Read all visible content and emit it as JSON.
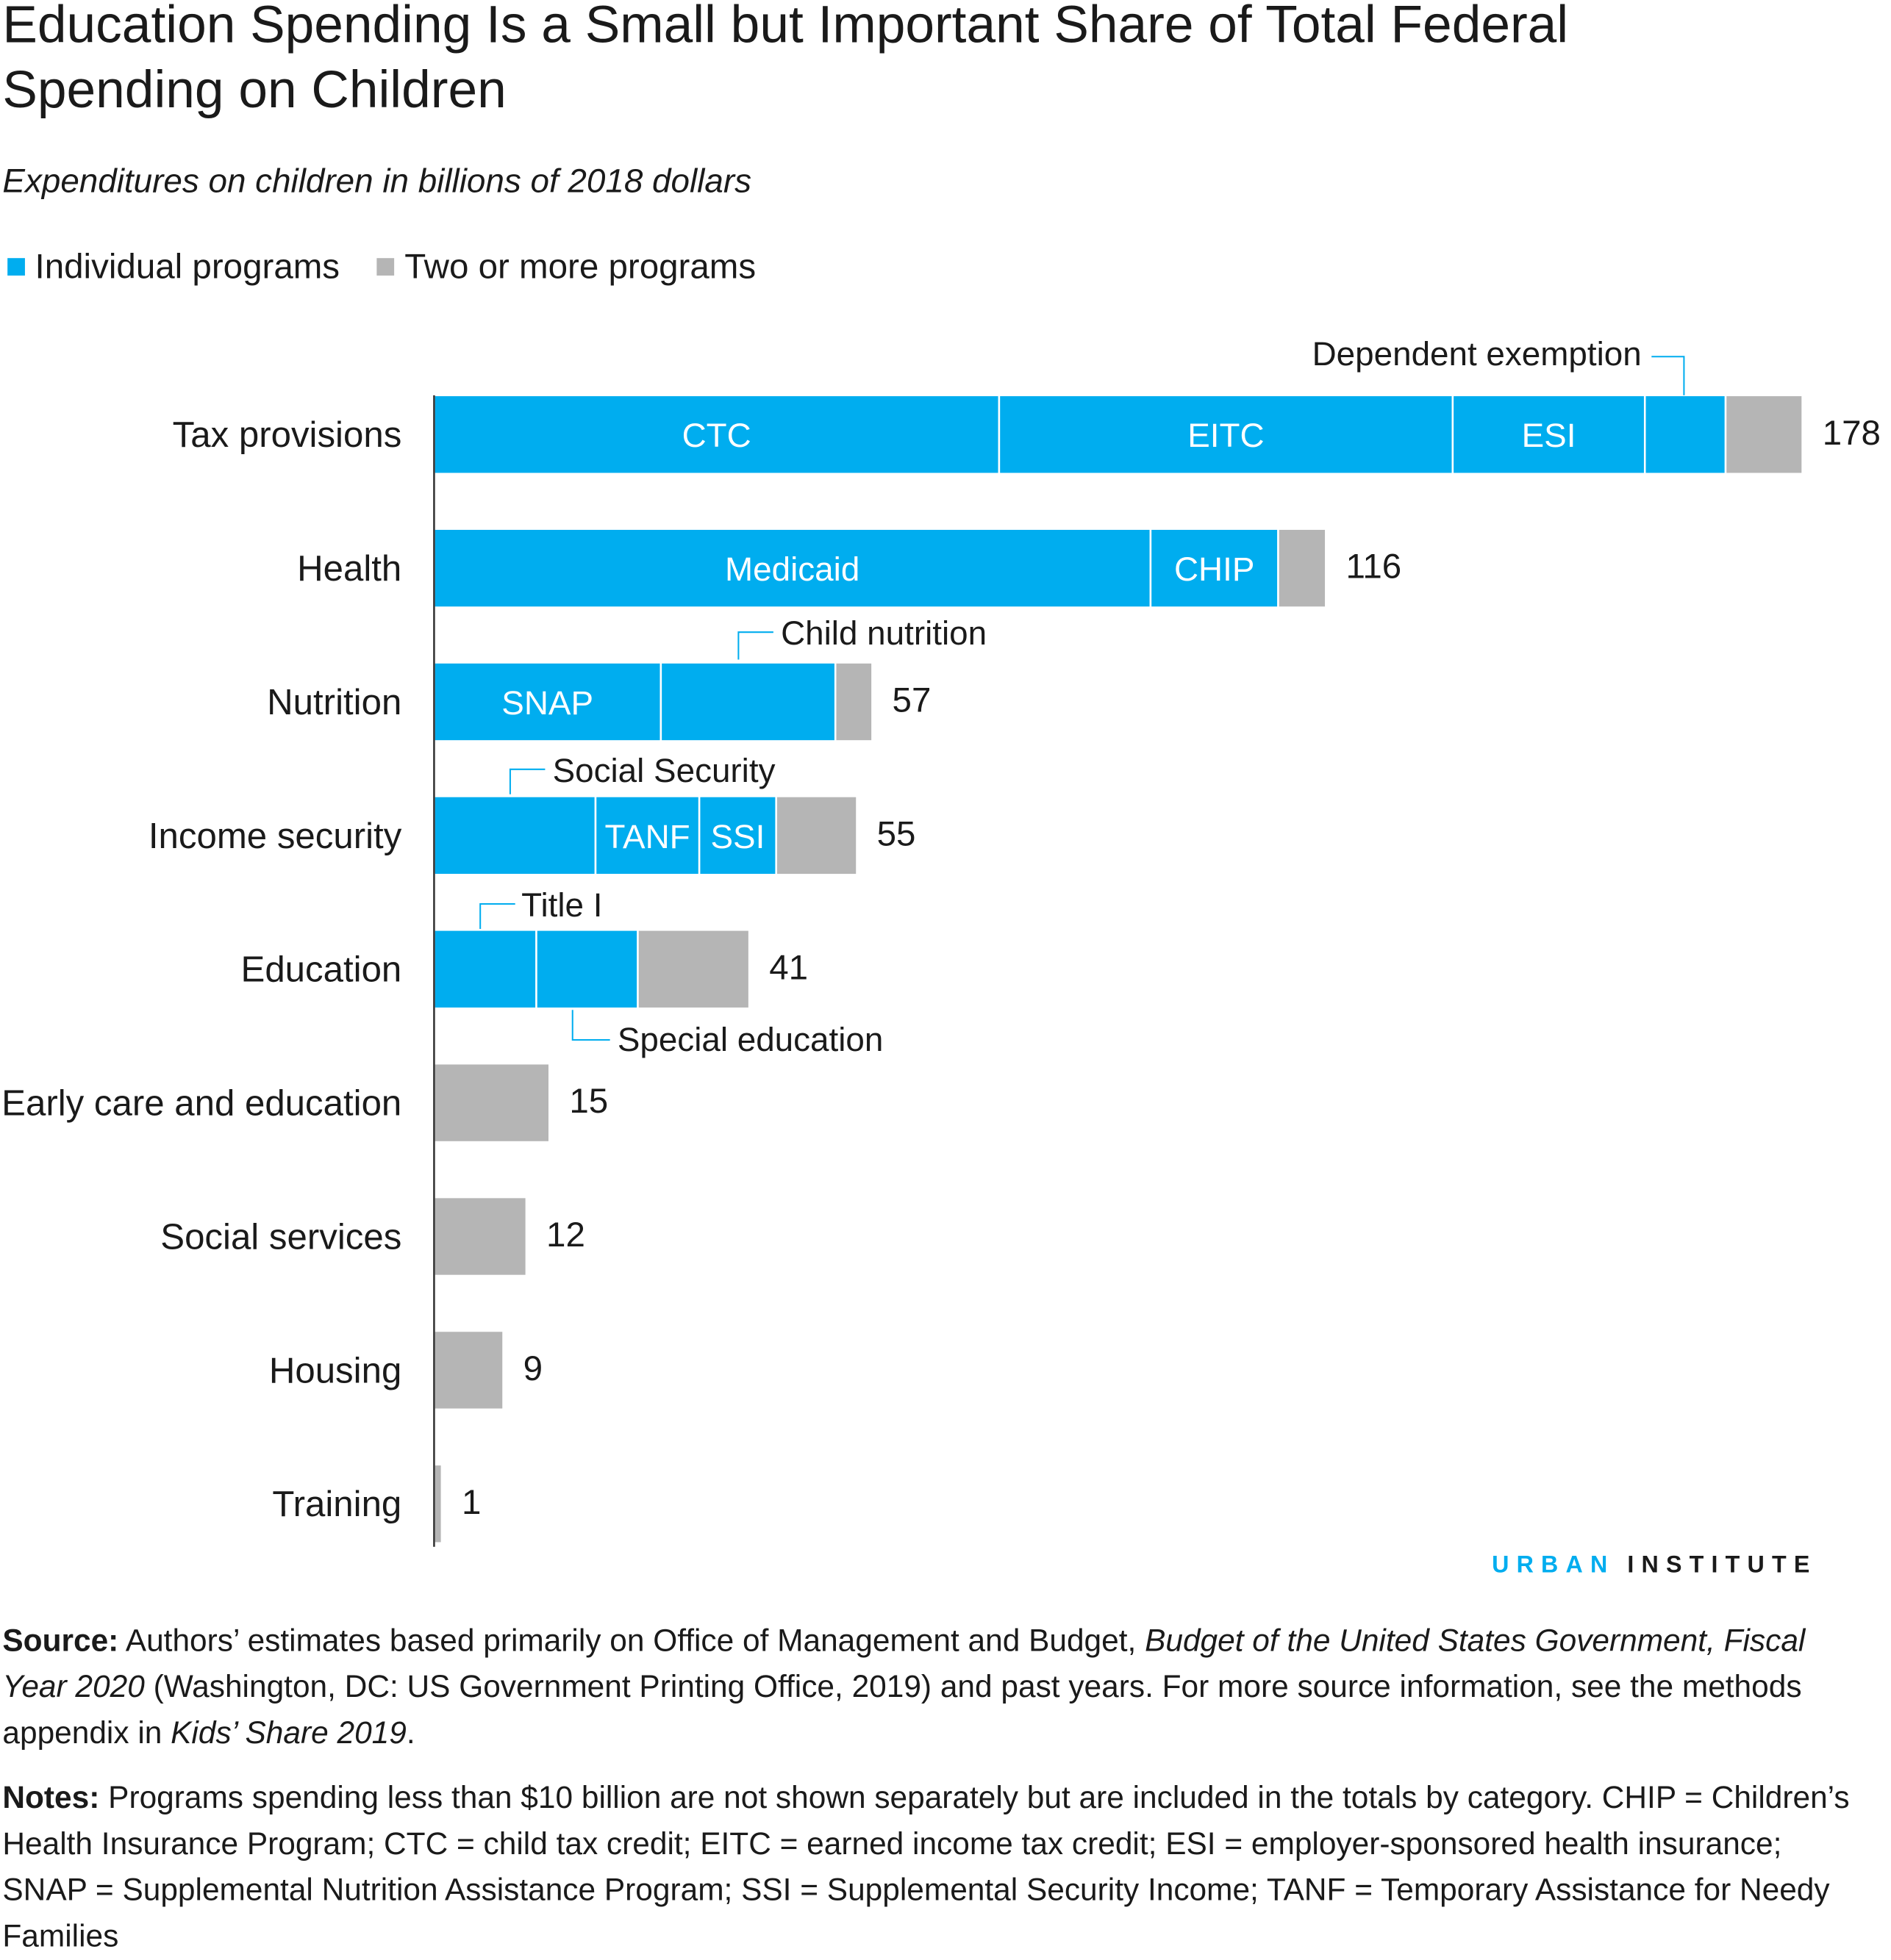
{
  "chart_data": {
    "type": "bar",
    "orientation": "horizontal",
    "stacked": true,
    "title": "Education Spending Is a Small but Important Share of Total Federal Spending on Children",
    "subtitle": "Expenditures on children in billions of 2018 dollars",
    "xlabel": "",
    "ylabel": "",
    "xlim": [
      0,
      178
    ],
    "grid": false,
    "legend_position": "top-left",
    "legend": [
      {
        "label": "Individual programs",
        "color": "#00adef"
      },
      {
        "label": "Two or more programs",
        "color": "#b5b5b5"
      }
    ],
    "rows": [
      {
        "category": "Tax provisions",
        "total": 178,
        "segments": [
          {
            "name": "CTC",
            "value": 73.5,
            "type": "individual"
          },
          {
            "name": "EITC",
            "value": 59,
            "type": "individual"
          },
          {
            "name": "ESI",
            "value": 25,
            "type": "individual"
          },
          {
            "name": "Dependent exemption",
            "value": 10.5,
            "type": "individual"
          },
          {
            "value": 10,
            "type": "two_or_more"
          }
        ]
      },
      {
        "category": "Health",
        "total": 116,
        "segments": [
          {
            "name": "Medicaid",
            "value": 93.2,
            "type": "individual"
          },
          {
            "name": "CHIP",
            "value": 16.6,
            "type": "individual"
          },
          {
            "value": 6.2,
            "type": "two_or_more"
          }
        ]
      },
      {
        "category": "Nutrition",
        "total": 57,
        "segments": [
          {
            "name": "SNAP",
            "value": 29.5,
            "type": "individual"
          },
          {
            "name": "Child nutrition",
            "value": 22.7,
            "type": "individual"
          },
          {
            "value": 4.8,
            "type": "two_or_more"
          }
        ]
      },
      {
        "category": "Income security",
        "total": 55,
        "segments": [
          {
            "name": "Social Security",
            "value": 21,
            "type": "individual"
          },
          {
            "name": "TANF",
            "value": 13.5,
            "type": "individual"
          },
          {
            "name": "SSI",
            "value": 10,
            "type": "individual"
          },
          {
            "value": 10.5,
            "type": "two_or_more"
          }
        ]
      },
      {
        "category": "Education",
        "total": 41,
        "segments": [
          {
            "name": "Title I",
            "value": 13.3,
            "type": "individual"
          },
          {
            "name": "Special education",
            "value": 13.2,
            "type": "individual"
          },
          {
            "value": 14.5,
            "type": "two_or_more"
          }
        ]
      },
      {
        "category": "Early care and education",
        "total": 15,
        "segments": [
          {
            "value": 15,
            "type": "two_or_more"
          }
        ]
      },
      {
        "category": "Social services",
        "total": 12,
        "segments": [
          {
            "value": 12,
            "type": "two_or_more"
          }
        ]
      },
      {
        "category": "Housing",
        "total": 9,
        "segments": [
          {
            "value": 9,
            "type": "two_or_more"
          }
        ]
      },
      {
        "category": "Training",
        "total": 1,
        "segments": [
          {
            "value": 1,
            "type": "two_or_more"
          }
        ]
      }
    ]
  },
  "logo": {
    "part1": "URBAN",
    "part2": "INSTITUTE"
  },
  "source": {
    "label": "Source:",
    "text1": " Authors’ estimates based primarily on Office of Management and Budget, ",
    "italic1": "Budget of the United States Government, Fiscal Year 2020",
    "text2": " (Washington, DC: US Government Printing Office, 2019) and past years. For more source information, see the methods appendix in ",
    "italic2": "Kids’ Share 2019",
    "text3": "."
  },
  "notes": {
    "label": "Notes:",
    "text": " Programs spending less than $10 billion are not shown separately but are included in the totals by category. CHIP = Children’s Health Insurance Program; CTC = child tax credit; EITC = earned income tax credit; ESI = employer-sponsored health insurance; SNAP = Supplemental Nutrition Assistance Program; SSI = Supplemental Security Income; TANF = Temporary Assistance for Needy Families"
  }
}
